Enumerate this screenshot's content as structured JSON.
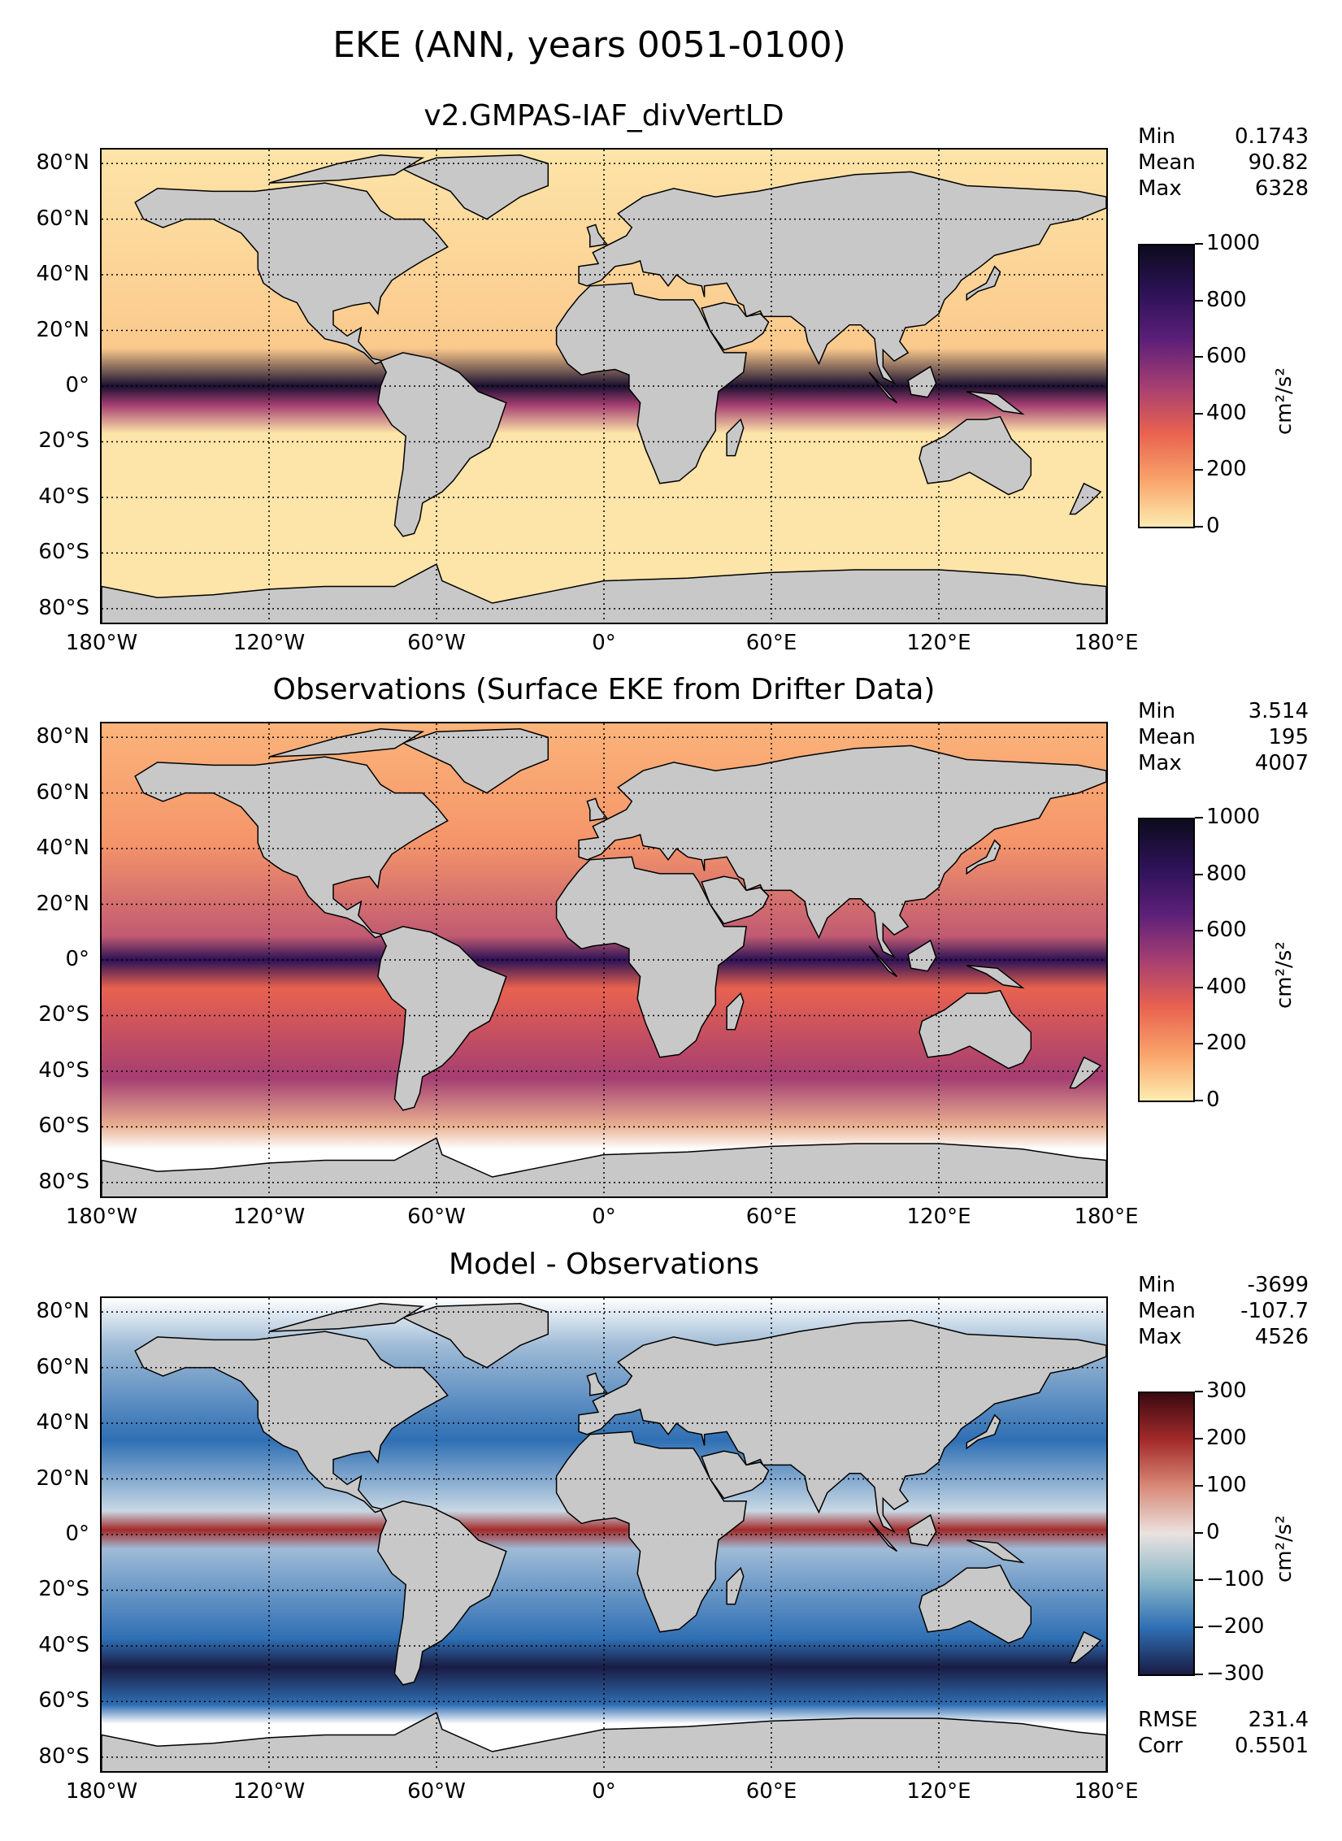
{
  "suptitle": "EKE (ANN, years 0051-0100)",
  "lat_labels": [
    "80°N",
    "60°N",
    "40°N",
    "20°N",
    "0°",
    "20°S",
    "40°S",
    "60°S",
    "80°S"
  ],
  "lon_labels": [
    "180°W",
    "120°W",
    "60°W",
    "0°",
    "60°E",
    "120°E",
    "180°E"
  ],
  "units_label": "cm²/s²",
  "colors": {
    "land": "#c8c8c8",
    "grid": "#000000"
  },
  "panels": [
    {
      "title": "v2.GMPAS-IAF_divVertLD",
      "stats": [
        {
          "label": "Min",
          "value": "0.1743"
        },
        {
          "label": "Mean",
          "value": "90.82"
        },
        {
          "label": "Max",
          "value": "6328"
        }
      ],
      "colorbar": {
        "ticks": [
          "1000",
          "800",
          "600",
          "400",
          "200",
          "0"
        ],
        "gradient": [
          "#0d0b1e",
          "#2c1256",
          "#5b1f78",
          "#a53e72",
          "#e8624f",
          "#f9a36a",
          "#fdebb0"
        ]
      },
      "ocean_color": "#fde4a8"
    },
    {
      "title": "Observations (Surface EKE from Drifter Data)",
      "stats": [
        {
          "label": "Min",
          "value": "3.514"
        },
        {
          "label": "Mean",
          "value": "195"
        },
        {
          "label": "Max",
          "value": "4007"
        }
      ],
      "colorbar": {
        "ticks": [
          "1000",
          "800",
          "600",
          "400",
          "200",
          "0"
        ],
        "gradient": [
          "#0d0b1e",
          "#2c1256",
          "#5b1f78",
          "#a53e72",
          "#e8624f",
          "#f9a36a",
          "#fdebb0"
        ]
      },
      "ocean_color": "#f5a06e"
    },
    {
      "title": "Model - Observations",
      "stats": [
        {
          "label": "Min",
          "value": "-3699"
        },
        {
          "label": "Mean",
          "value": "-107.7"
        },
        {
          "label": "Max",
          "value": "4526"
        }
      ],
      "colorbar": {
        "ticks": [
          "300",
          "200",
          "100",
          "0",
          "−100",
          "−200",
          "−300"
        ],
        "gradient": [
          "#3c0911",
          "#a32a2a",
          "#d98a78",
          "#eae2df",
          "#8bb8c8",
          "#2f6fb4",
          "#191c44"
        ]
      },
      "ocean_color": "#9fbbd6",
      "footer": [
        {
          "label": "RMSE",
          "value": "231.4"
        },
        {
          "label": "Corr",
          "value": "0.5501"
        }
      ]
    }
  ]
}
